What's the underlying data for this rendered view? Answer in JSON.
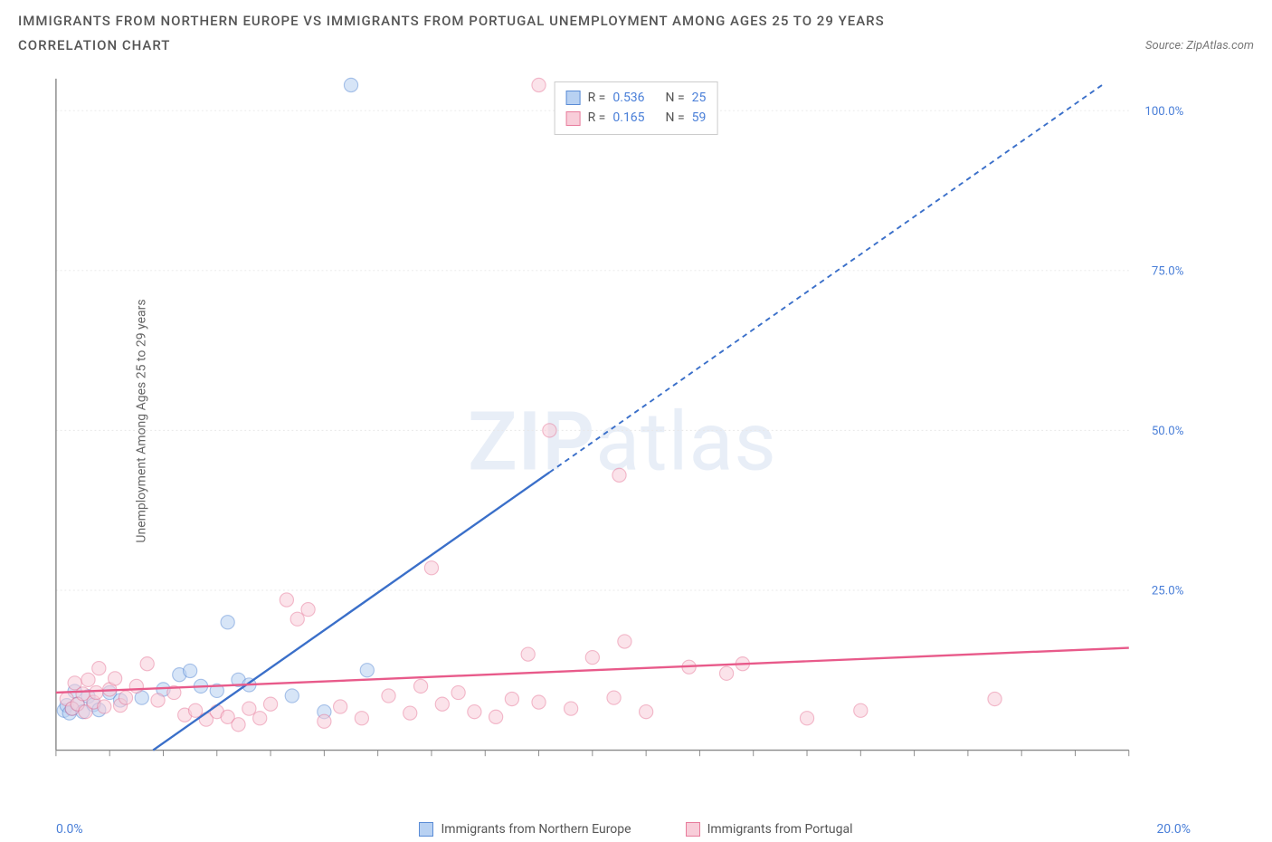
{
  "title": "IMMIGRANTS FROM NORTHERN EUROPE VS IMMIGRANTS FROM PORTUGAL UNEMPLOYMENT AMONG AGES 25 TO 29 YEARS",
  "subtitle": "CORRELATION CHART",
  "source": "Source: ZipAtlas.com",
  "watermark_a": "ZIP",
  "watermark_b": "atlas",
  "y_axis_label": "Unemployment Among Ages 25 to 29 years",
  "chart": {
    "type": "scatter",
    "xlim": [
      0,
      20
    ],
    "ylim": [
      0,
      105
    ],
    "x_ticks": [
      0,
      1,
      2,
      3,
      4,
      5,
      6,
      7,
      8,
      9,
      10,
      11,
      12,
      13,
      14,
      15,
      16,
      17,
      18,
      19,
      20
    ],
    "x_label_min": "0.0%",
    "x_label_max": "20.0%",
    "y_gridlines": [
      25,
      50,
      75,
      100
    ],
    "y_tick_labels": [
      "25.0%",
      "50.0%",
      "75.0%",
      "100.0%"
    ],
    "background_color": "#ffffff",
    "grid_color": "#e8e8e8",
    "axis_color": "#888888",
    "marker_radius": 8,
    "marker_opacity": 0.55,
    "series": [
      {
        "name": "Immigrants from Northern Europe",
        "color": "#6b9de8",
        "fill": "#b8d1f2",
        "stroke": "#5a8cd6",
        "trend_color": "#3a6fc9",
        "trend_dash_after_x": 9.2,
        "trend_p1": [
          1.3,
          -3
        ],
        "trend_p2": [
          19.5,
          104
        ],
        "R": "0.536",
        "N": "25",
        "points": [
          [
            0.15,
            6.2
          ],
          [
            0.2,
            7.0
          ],
          [
            0.25,
            5.8
          ],
          [
            0.3,
            6.5
          ],
          [
            0.35,
            9.2
          ],
          [
            0.4,
            7.2
          ],
          [
            0.5,
            6.0
          ],
          [
            0.6,
            8.4
          ],
          [
            0.7,
            7.1
          ],
          [
            0.8,
            6.3
          ],
          [
            1.0,
            9.0
          ],
          [
            1.2,
            7.8
          ],
          [
            1.6,
            8.2
          ],
          [
            2.0,
            9.5
          ],
          [
            2.3,
            11.8
          ],
          [
            2.5,
            12.4
          ],
          [
            2.7,
            10.0
          ],
          [
            3.0,
            9.3
          ],
          [
            3.2,
            20.0
          ],
          [
            3.4,
            11.0
          ],
          [
            3.6,
            10.2
          ],
          [
            4.4,
            8.5
          ],
          [
            5.0,
            6.0
          ],
          [
            5.8,
            12.5
          ],
          [
            5.5,
            104
          ]
        ]
      },
      {
        "name": "Immigrants from Portugal",
        "color": "#f29bb3",
        "fill": "#f8cdd9",
        "stroke": "#e87c9c",
        "trend_color": "#e85a8a",
        "trend_dash_after_x": 100,
        "trend_p1": [
          0,
          9.0
        ],
        "trend_p2": [
          20,
          16.0
        ],
        "R": "0.165",
        "N": "59",
        "points": [
          [
            0.2,
            8.0
          ],
          [
            0.3,
            6.5
          ],
          [
            0.35,
            10.5
          ],
          [
            0.4,
            7.2
          ],
          [
            0.5,
            8.8
          ],
          [
            0.55,
            6.0
          ],
          [
            0.6,
            11.0
          ],
          [
            0.7,
            7.5
          ],
          [
            0.75,
            9.0
          ],
          [
            0.8,
            12.8
          ],
          [
            0.9,
            6.8
          ],
          [
            1.0,
            9.5
          ],
          [
            1.1,
            11.2
          ],
          [
            1.2,
            7.0
          ],
          [
            1.3,
            8.2
          ],
          [
            1.5,
            10.0
          ],
          [
            1.7,
            13.5
          ],
          [
            1.9,
            7.8
          ],
          [
            2.2,
            9.0
          ],
          [
            2.4,
            5.5
          ],
          [
            2.6,
            6.2
          ],
          [
            2.8,
            4.8
          ],
          [
            3.0,
            6.0
          ],
          [
            3.2,
            5.2
          ],
          [
            3.4,
            4.0
          ],
          [
            3.6,
            6.5
          ],
          [
            3.8,
            5.0
          ],
          [
            4.0,
            7.2
          ],
          [
            4.3,
            23.5
          ],
          [
            4.5,
            20.5
          ],
          [
            4.7,
            22.0
          ],
          [
            5.0,
            4.5
          ],
          [
            5.3,
            6.8
          ],
          [
            5.7,
            5.0
          ],
          [
            6.2,
            8.5
          ],
          [
            6.6,
            5.8
          ],
          [
            6.8,
            10.0
          ],
          [
            7.0,
            28.5
          ],
          [
            7.2,
            7.2
          ],
          [
            7.5,
            9.0
          ],
          [
            7.8,
            6.0
          ],
          [
            8.2,
            5.2
          ],
          [
            8.5,
            8.0
          ],
          [
            8.8,
            15.0
          ],
          [
            9.0,
            7.5
          ],
          [
            9.2,
            50.0
          ],
          [
            9.6,
            6.5
          ],
          [
            10.0,
            14.5
          ],
          [
            10.5,
            43.0
          ],
          [
            10.4,
            8.2
          ],
          [
            10.6,
            17.0
          ],
          [
            11.0,
            6.0
          ],
          [
            11.8,
            13.0
          ],
          [
            12.5,
            12.0
          ],
          [
            12.8,
            13.5
          ],
          [
            14.0,
            5.0
          ],
          [
            15.0,
            6.2
          ],
          [
            17.5,
            8.0
          ],
          [
            9.0,
            104
          ]
        ]
      }
    ]
  },
  "legend": {
    "r_label": "R =",
    "n_label": "N ="
  }
}
